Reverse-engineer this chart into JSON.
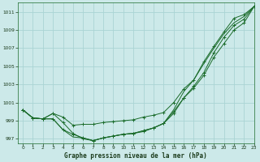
{
  "title": "Graphe pression niveau de la mer (hPa)",
  "bg_color": "#cce9e9",
  "grid_color": "#aad4d4",
  "line_color": "#1a6b2a",
  "text_color": "#1a3a1a",
  "xlim": [
    -0.5,
    23
  ],
  "ylim": [
    996.5,
    1012
  ],
  "yticks": [
    997,
    999,
    1001,
    1003,
    1005,
    1007,
    1009,
    1011
  ],
  "xticks": [
    0,
    1,
    2,
    3,
    4,
    5,
    6,
    7,
    8,
    9,
    10,
    11,
    12,
    13,
    14,
    15,
    16,
    17,
    18,
    19,
    20,
    21,
    22,
    23
  ],
  "series": [
    {
      "y": [
        1000.2,
        999.3,
        999.2,
        999.8,
        999.4,
        998.5,
        998.6,
        998.6,
        998.8,
        998.9,
        999.0,
        999.1,
        999.4,
        999.6,
        999.9,
        1001.0,
        1002.5,
        1003.5,
        1005.5,
        1007.2,
        1008.8,
        1010.3,
        1010.7,
        1011.6
      ],
      "marker": true,
      "linestyle": "-"
    },
    {
      "y": [
        1000.2,
        999.3,
        999.2,
        999.8,
        998.8,
        997.6,
        997.0,
        996.8,
        997.1,
        997.3,
        997.5,
        997.6,
        997.8,
        998.2,
        998.7,
        999.8,
        1001.5,
        1002.8,
        1004.3,
        1006.5,
        1008.2,
        1009.5,
        1010.2,
        1011.6
      ],
      "marker": true,
      "linestyle": "-"
    },
    {
      "y": [
        1000.2,
        999.3,
        999.2,
        999.2,
        998.0,
        997.5,
        997.1,
        996.8,
        997.1,
        997.3,
        997.5,
        997.6,
        997.9,
        998.2,
        998.7,
        1000.0,
        1001.5,
        1002.6,
        1004.0,
        1006.0,
        1007.5,
        1009.0,
        1009.8,
        1011.6
      ],
      "marker": true,
      "linestyle": "-"
    },
    {
      "y": [
        1000.2,
        999.3,
        999.2,
        999.2,
        998.0,
        997.2,
        997.1,
        996.8,
        997.1,
        997.3,
        997.5,
        997.6,
        997.9,
        998.2,
        998.7,
        1000.2,
        1002.2,
        1003.5,
        1005.3,
        1007.0,
        1008.6,
        1009.8,
        1010.5,
        1011.6
      ],
      "marker": false,
      "linestyle": "-"
    }
  ]
}
